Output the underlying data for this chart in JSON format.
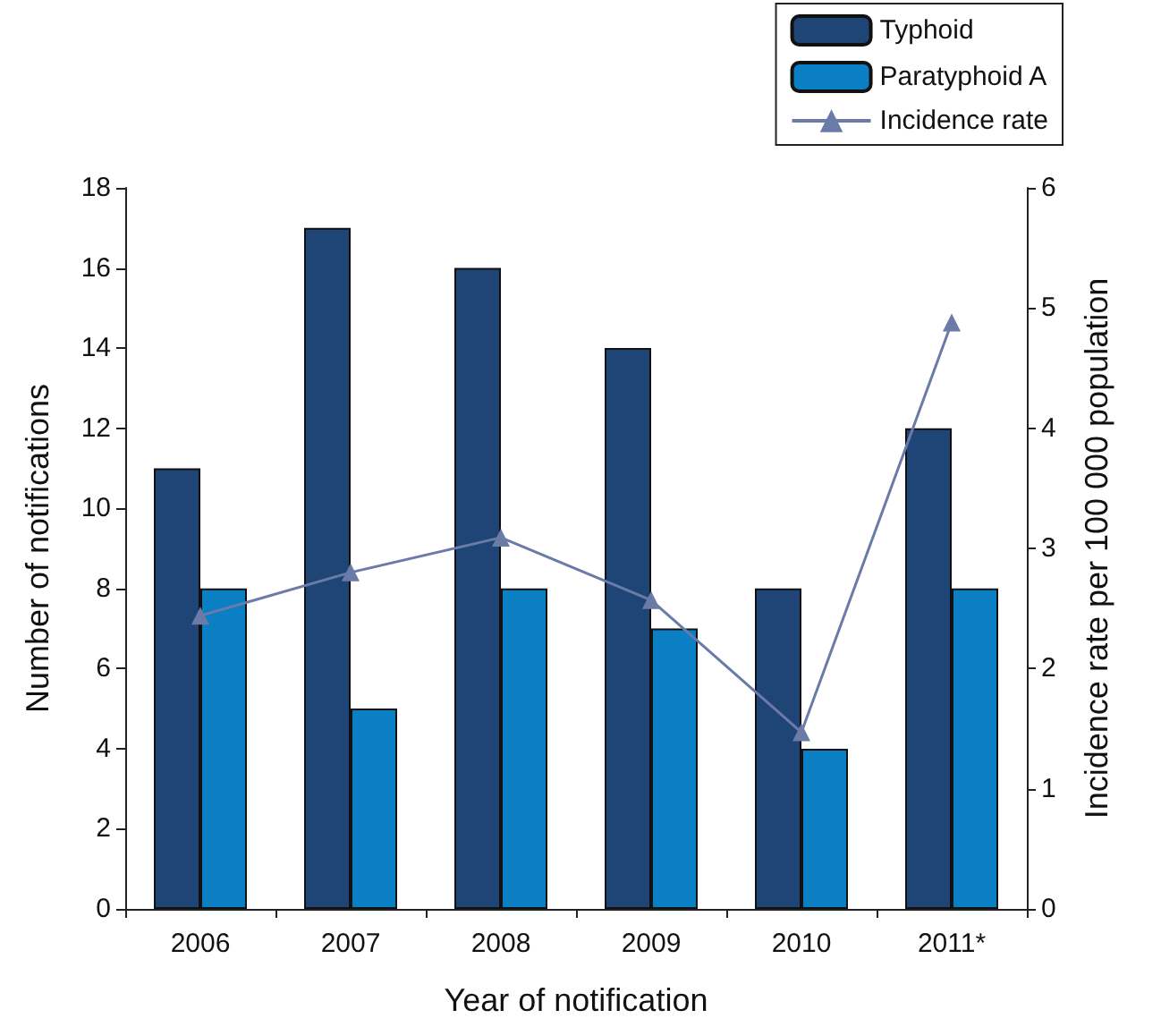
{
  "chart_data": {
    "type": "bar",
    "xlabel": "Year of notification",
    "ylabel": "Number of notifications",
    "y2label": "Incidence rate per 100 000 population",
    "categories": [
      "2006",
      "2007",
      "2008",
      "2009",
      "2010",
      "2011*"
    ],
    "series": [
      {
        "name": "Typhoid",
        "color": "#1f4577",
        "values": [
          11,
          17,
          16,
          14,
          8,
          12
        ]
      },
      {
        "name": "Paratyphoid A",
        "color": "#0a7fc4",
        "values": [
          8,
          5,
          8,
          7,
          4,
          8
        ]
      },
      {
        "name": "Incidence rate",
        "type": "line",
        "axis": "y2",
        "color": "#6b7ba8",
        "marker": "triangle",
        "values": [
          2.44,
          2.8,
          3.09,
          2.57,
          1.47,
          4.88
        ]
      }
    ],
    "ylim": [
      0,
      18
    ],
    "yticks": [
      0,
      2,
      4,
      6,
      8,
      10,
      12,
      14,
      16,
      18
    ],
    "y2lim": [
      0,
      6
    ],
    "y2ticks": [
      0,
      1,
      2,
      3,
      4,
      5,
      6
    ],
    "grid": false,
    "legend": "top right"
  }
}
